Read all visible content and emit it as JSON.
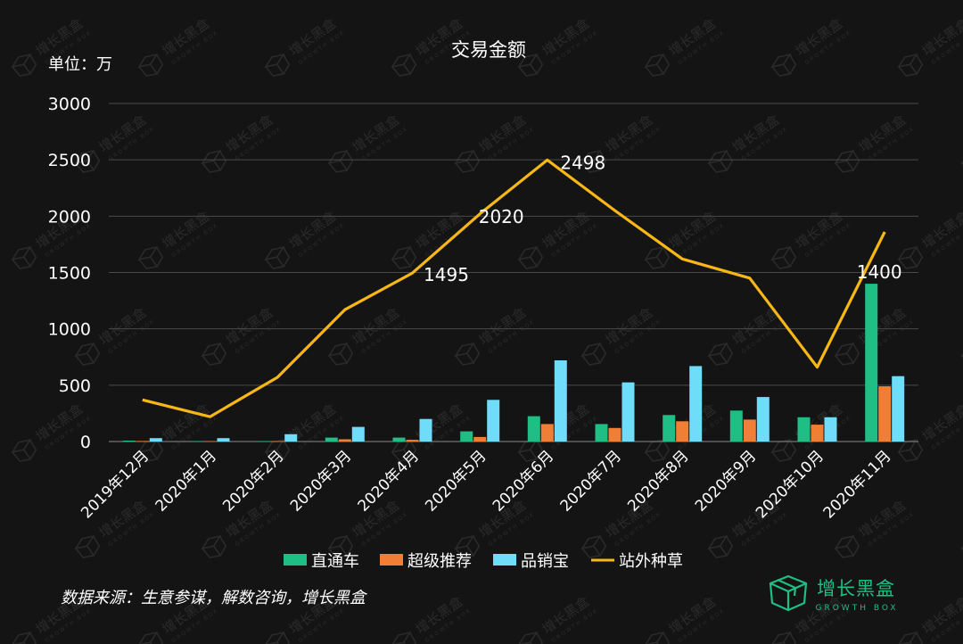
{
  "chart_data": {
    "type": "bar",
    "title": "交易金额",
    "unit_label": "单位：万",
    "ylim": [
      0,
      3000
    ],
    "yticks": [
      0,
      500,
      1000,
      1500,
      2000,
      2500,
      3000
    ],
    "grid": true,
    "legend_position": "bottom",
    "categories": [
      "2019年12月",
      "2020年1月",
      "2020年2月",
      "2020年3月",
      "2020年4月",
      "2020年5月",
      "2020年6月",
      "2020年7月",
      "2020年8月",
      "2020年9月",
      "2020年10月",
      "2020年11月"
    ],
    "series": [
      {
        "name": "直通车",
        "kind": "bar",
        "color": "#1fbe84",
        "values": [
          8,
          3,
          3,
          35,
          35,
          90,
          225,
          155,
          235,
          275,
          215,
          1400
        ]
      },
      {
        "name": "超级推荐",
        "kind": "bar",
        "color": "#f07f35",
        "values": [
          5,
          3,
          3,
          20,
          15,
          40,
          155,
          120,
          180,
          195,
          150,
          490
        ]
      },
      {
        "name": "品销宝",
        "kind": "bar",
        "color": "#6fdcfa",
        "values": [
          30,
          30,
          65,
          130,
          200,
          370,
          720,
          525,
          670,
          395,
          215,
          580
        ]
      },
      {
        "name": "站外种草",
        "kind": "line",
        "color": "#f7b716",
        "values": [
          370,
          220,
          570,
          1170,
          1495,
          2020,
          2498,
          2050,
          1620,
          1450,
          660,
          1860
        ]
      }
    ],
    "annotations": [
      {
        "text": "1495",
        "category": "2020年4月",
        "value": 1495
      },
      {
        "text": "2020",
        "category": "2020年5月",
        "value": 2020
      },
      {
        "text": "2498",
        "category": "2020年6月",
        "value": 2498
      },
      {
        "text": "1400",
        "category": "2020年11月",
        "value": 1400
      }
    ]
  },
  "footer": {
    "source": "数据来源：生意参谋，解数咨询，增长黑盒"
  },
  "brand": {
    "name": "增长黑盒",
    "sub": "GROWTH BOX",
    "color": "#1fbe84"
  },
  "watermark": {
    "name": "增长黑盒",
    "sub": "GROWTH BOX"
  }
}
